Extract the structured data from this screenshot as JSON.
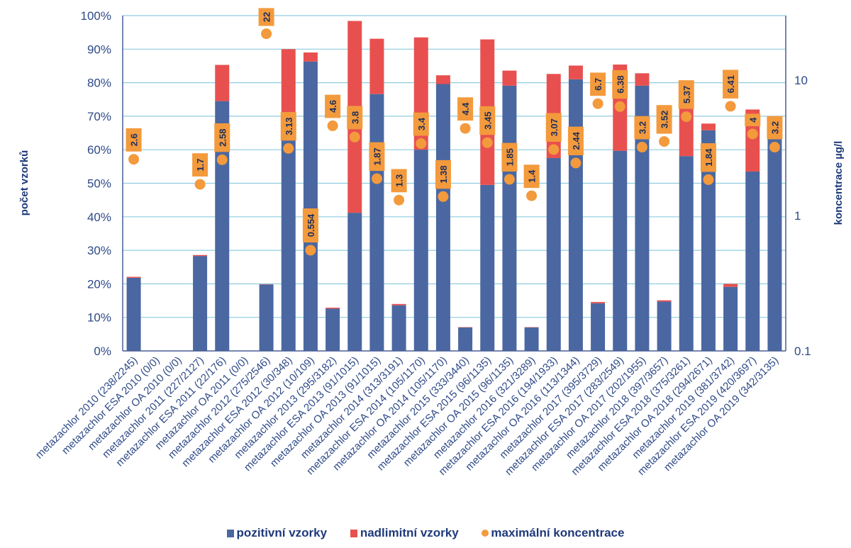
{
  "chart_data": {
    "type": "bar",
    "stacked": true,
    "title": "",
    "ylabel": "počet vzorků",
    "y2label": "koncentrace µg/l",
    "ylim": [
      0,
      100
    ],
    "y2lim": [
      0.1,
      30
    ],
    "y2scale": "log",
    "grid": true,
    "legend_position": "bottom",
    "yticks": [
      "0%",
      "10%",
      "20%",
      "30%",
      "40%",
      "50%",
      "60%",
      "70%",
      "80%",
      "90%",
      "100%"
    ],
    "y2ticks": [
      "0.1",
      "1",
      "10"
    ],
    "categories": [
      "metazachlor 2010 (238/2245)",
      "metazachlor ESA 2010 (0/0)",
      "metazachlor OA 2010 (0/0)",
      "metazachlor 2011 (227/2127)",
      "metazachlor ESA 2011 (22/176)",
      "metazachlor OA 2011 (0/0)",
      "metazachlor 2012 (275/2546)",
      "metazachlor ESA 2012 (30/348)",
      "metazachlor OA 2012 (10/109)",
      "metazachlor 2013 (295/3182)",
      "metazachlor ESA 2013 (91/1015)",
      "metazachlor OA 2013 (91/1015)",
      "metazachlor 2014 (313/3191)",
      "metazachlor ESA 2014 (105/1170)",
      "metazachlor OA 2014 (105/1170)",
      "metazachlor 2015 (333/3440)",
      "metazachlor ESA 2015 (96/1135)",
      "metazachlor OA 2015 (96/1135)",
      "metazachlor 2016 (321/3289)",
      "metazachlor ESA 2016 (194/1933)",
      "metazachlor OA 2016 (113/1344)",
      "metazachlor 2017 (395/3729)",
      "metazachlor ESA 2017 (283/2549)",
      "metazachlor OA 2017 (202/1955)",
      "metazachlor 2018 (397/3657)",
      "metazachlor ESA 2018 (375/3261)",
      "metazachlor OA 2018 (294/2671)",
      "metazachlor 2019 (381/3742)",
      "metazachlor ESA 2019 (420/3697)",
      "metazachlor OA 2019 (342/3135)"
    ],
    "series": [
      {
        "name": "pozitivní vzorky",
        "type": "bar",
        "axis": "left",
        "color": "#4a67a1",
        "values": [
          21.8,
          0,
          0,
          28.3,
          74.5,
          0,
          19.8,
          63.0,
          86.3,
          12.6,
          41.2,
          76.6,
          13.6,
          60.0,
          79.6,
          7.0,
          49.5,
          79.1,
          7.0,
          57.5,
          81.0,
          14.2,
          59.7,
          79.1,
          14.7,
          58.1,
          65.8,
          19.1,
          53.5,
          64.3
        ]
      },
      {
        "name": "nadlimitní vzorky",
        "type": "bar",
        "axis": "left",
        "color": "#e8504f",
        "values": [
          0.3,
          0,
          0,
          0.3,
          10.8,
          0,
          0.1,
          27.0,
          2.7,
          0.3,
          57.2,
          16.5,
          0.4,
          33.5,
          2.6,
          0.1,
          43.4,
          4.5,
          0.1,
          25.1,
          4.1,
          0.4,
          25.7,
          3.7,
          0.4,
          19.2,
          2.0,
          0.9,
          18.5,
          5.1
        ]
      },
      {
        "name": "maximální koncentrace",
        "type": "scatter",
        "axis": "right",
        "color": "#f39a3d",
        "values": [
          2.6,
          null,
          null,
          1.7,
          2.58,
          null,
          22,
          3.13,
          0.554,
          4.6,
          3.8,
          1.87,
          1.3,
          3.4,
          1.38,
          4.4,
          3.45,
          1.85,
          1.4,
          3.07,
          2.44,
          6.7,
          6.38,
          3.2,
          3.52,
          5.37,
          1.84,
          6.41,
          4,
          3.2
        ],
        "labels": [
          "2.6",
          null,
          null,
          "1.7",
          "2.58",
          null,
          "22",
          "3.13",
          "0.554",
          "4.6",
          "3.8",
          "1.87",
          "1.3",
          "3.4",
          "1.38",
          "4.4",
          "3.45",
          "1.85",
          "1.4",
          "3.07",
          "2.44",
          "6.7",
          "6.38",
          "3.2",
          "3.52",
          "5.37",
          "1.84",
          "6.41",
          "4",
          "3.2"
        ]
      }
    ]
  },
  "legend": {
    "items": [
      {
        "label": "pozitivní vzorky",
        "color": "#4a67a1",
        "shape": "square"
      },
      {
        "label": "nadlimitní vzorky",
        "color": "#e8504f",
        "shape": "square"
      },
      {
        "label": "maximální koncentrace",
        "color": "#f39a3d",
        "shape": "circle"
      }
    ]
  },
  "colors": {
    "grid": "#8fcde0",
    "axis": "#4a5f95",
    "text": "#2e4a87",
    "label_box": "#f39a3d"
  }
}
